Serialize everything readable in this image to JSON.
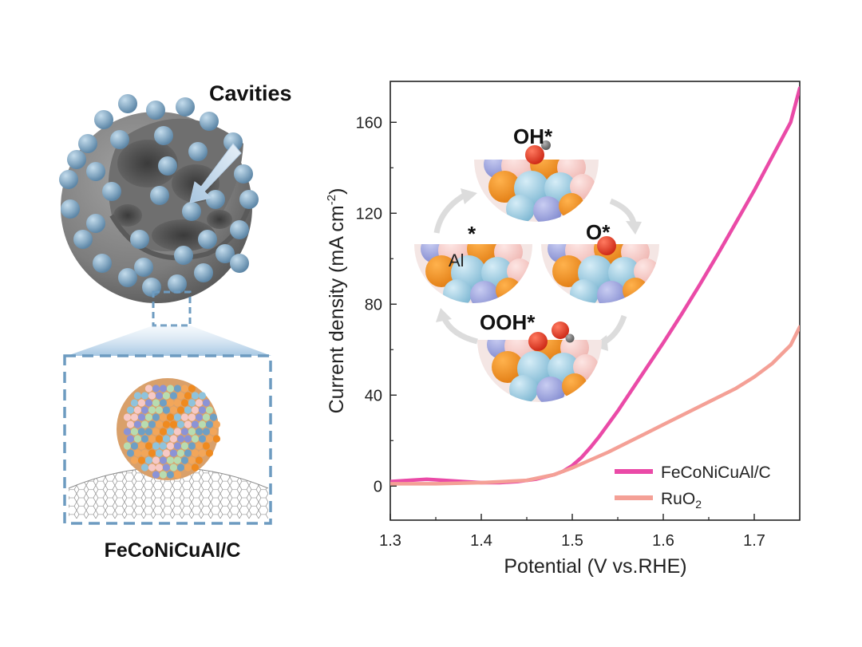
{
  "illustration": {
    "cavities_label": "Cavities",
    "material_label": "FeCoNiCuAl/C",
    "colors": {
      "shell": "#7d7d7d",
      "particles": "#87aac4",
      "frame": "#6d9bc0",
      "arrow": "#a8c6e0"
    }
  },
  "mechanism": {
    "labels": {
      "oh": "OH*",
      "o": "O*",
      "ooh": "OOH*",
      "star": "*",
      "al": "Al"
    },
    "atom_colors": {
      "orange": "#ef8a1f",
      "blue": "#8fc3dc",
      "pink": "#f6c9c6",
      "purple": "#8b93d6",
      "oxygen": "#e0321e",
      "hydrogen": "#6a6a6a"
    }
  },
  "chart_data": {
    "type": "line",
    "xlabel": "Potential (V vs.RHE)",
    "ylabel_main": "Current density (mA cm",
    "ylabel_sup": "-2",
    "ylabel_tail": ")",
    "xlim": [
      1.3,
      1.75
    ],
    "ylim": [
      -15,
      178
    ],
    "xticks": [
      1.3,
      1.4,
      1.5,
      1.6,
      1.7
    ],
    "xtick_labels": [
      "1.3",
      "1.4",
      "1.5",
      "1.6",
      "1.7"
    ],
    "yticks": [
      0,
      40,
      80,
      120,
      160
    ],
    "ytick_labels": [
      "0",
      "40",
      "80",
      "120",
      "160"
    ],
    "grid": false,
    "legend_position": "bottom-right",
    "series": [
      {
        "name": "FeCoNiCuAl/C",
        "color": "#ea4aa7",
        "x": [
          1.3,
          1.32,
          1.34,
          1.36,
          1.38,
          1.4,
          1.42,
          1.44,
          1.46,
          1.48,
          1.49,
          1.5,
          1.51,
          1.52,
          1.53,
          1.54,
          1.55,
          1.56,
          1.57,
          1.58,
          1.6,
          1.62,
          1.64,
          1.66,
          1.68,
          1.7,
          1.72,
          1.74,
          1.75
        ],
        "y": [
          2,
          2.5,
          3,
          2.5,
          2,
          1.5,
          1.5,
          2,
          3,
          5,
          6.5,
          9,
          12.5,
          17,
          22,
          27.5,
          33,
          39,
          45,
          51,
          63,
          75.5,
          88.5,
          102,
          116,
          130,
          145,
          160,
          175
        ]
      },
      {
        "name": "RuO",
        "name_sub": "2",
        "color": "#f4a096",
        "x": [
          1.3,
          1.35,
          1.4,
          1.45,
          1.48,
          1.5,
          1.52,
          1.54,
          1.56,
          1.58,
          1.6,
          1.62,
          1.64,
          1.66,
          1.68,
          1.7,
          1.72,
          1.74,
          1.75
        ],
        "y": [
          1,
          1,
          1.5,
          2.5,
          5,
          8,
          11.5,
          15,
          19,
          23,
          27,
          31,
          35,
          39,
          43,
          48,
          54,
          62,
          70
        ]
      }
    ]
  }
}
